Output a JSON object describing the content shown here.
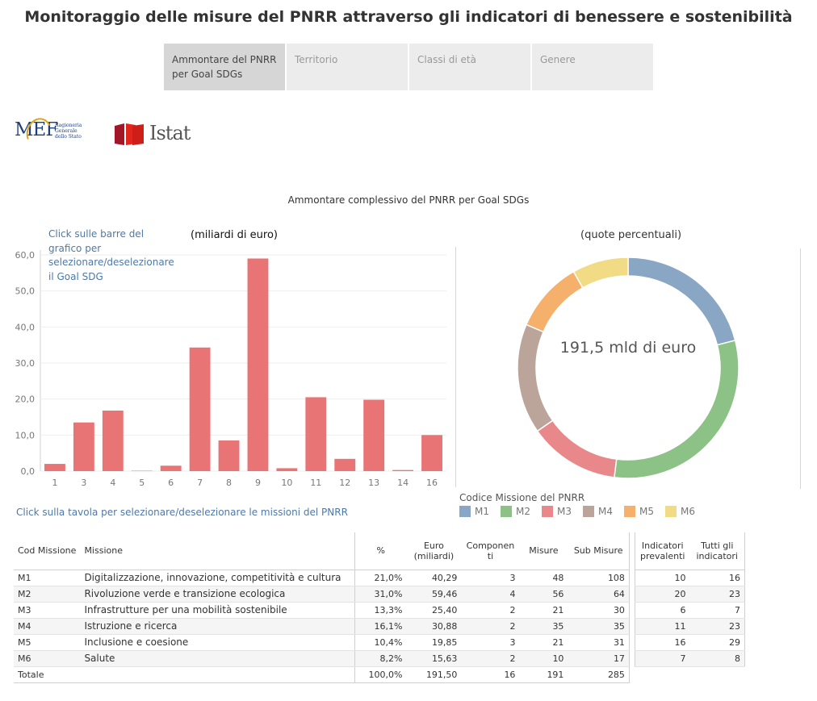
{
  "title": "Monitoraggio delle misure del PNRR attraverso gli indicatori di benessere e sostenibilità",
  "tabs": [
    {
      "label": "Ammontare del PNRR per Goal SDGs",
      "active": true
    },
    {
      "label": "Territorio",
      "active": false
    },
    {
      "label": "Classi di età",
      "active": false
    },
    {
      "label": "Genere",
      "active": false
    }
  ],
  "logos": {
    "mef": {
      "word": "MEF",
      "text": "Ragioneria Generale dello Stato"
    },
    "istat": {
      "word": "Istat"
    }
  },
  "chart_title": "Ammontare complessivo del PNRR per Goal SDGs",
  "bar_hint": "Click sulle barre del grafico per selezionare/deselezionare il Goal SDG",
  "bar_subtitle": "(miliardi di euro)",
  "donut_subtitle": "(quote percentuali)",
  "donut_center": "191,5 mld di euro",
  "legend": {
    "title": "Codice Missione del PNRR",
    "items": [
      {
        "label": "M1",
        "color": "#8aa6c5"
      },
      {
        "label": "M2",
        "color": "#8cc285"
      },
      {
        "label": "M3",
        "color": "#e8888b"
      },
      {
        "label": "M4",
        "color": "#bba59b"
      },
      {
        "label": "M5",
        "color": "#f5b06b"
      },
      {
        "label": "M6",
        "color": "#f1db85"
      }
    ]
  },
  "table_hint": "Click sulla tavola per selezionare/deselezionare le missioni del PNRR",
  "chart_data": [
    {
      "type": "bar",
      "subtitle": "(miliardi di euro)",
      "categories": [
        "1",
        "3",
        "4",
        "5",
        "6",
        "7",
        "8",
        "9",
        "10",
        "11",
        "12",
        "13",
        "14",
        "16"
      ],
      "values": [
        2.0,
        13.5,
        16.8,
        0.1,
        1.5,
        34.3,
        8.5,
        59.0,
        0.8,
        20.5,
        3.4,
        19.8,
        0.3,
        10.0
      ],
      "yticks": [
        "0,0",
        "10,0",
        "20,0",
        "30,0",
        "40,0",
        "50,0",
        "60,0"
      ],
      "ylim": [
        0,
        60
      ],
      "grid": true,
      "color": "#e87475"
    },
    {
      "type": "pie",
      "subtitle": "(quote percentuali)",
      "labels": [
        "M1",
        "M2",
        "M3",
        "M4",
        "M5",
        "M6"
      ],
      "values": [
        21.0,
        31.0,
        13.3,
        16.1,
        10.4,
        8.2
      ]
    }
  ],
  "table": {
    "headers": {
      "cod": "Cod Missione",
      "missione": "Missione",
      "pct": "%",
      "euro": "Euro (miliardi)",
      "componenti": "Componenti",
      "misure": "Misure",
      "sub_misure": "Sub Misure",
      "ind_prevalenti": "Indicatori prevalenti",
      "ind_tutti": "Tutti gli indicatori"
    },
    "rows": [
      {
        "cod": "M1",
        "missione": "Digitalizzazione, innovazione, competitività e cultura",
        "pct": "21,0%",
        "euro": "40,29",
        "componenti": "3",
        "misure": "48",
        "sub_misure": "108",
        "ind_prevalenti": "10",
        "ind_tutti": "16"
      },
      {
        "cod": "M2",
        "missione": "Rivoluzione verde e transizione ecologica",
        "pct": "31,0%",
        "euro": "59,46",
        "componenti": "4",
        "misure": "56",
        "sub_misure": "64",
        "ind_prevalenti": "20",
        "ind_tutti": "23"
      },
      {
        "cod": "M3",
        "missione": "Infrastrutture per una mobilità sostenibile",
        "pct": "13,3%",
        "euro": "25,40",
        "componenti": "2",
        "misure": "21",
        "sub_misure": "30",
        "ind_prevalenti": "6",
        "ind_tutti": "7"
      },
      {
        "cod": "M4",
        "missione": "Istruzione e ricerca",
        "pct": "16,1%",
        "euro": "30,88",
        "componenti": "2",
        "misure": "35",
        "sub_misure": "35",
        "ind_prevalenti": "11",
        "ind_tutti": "23"
      },
      {
        "cod": "M5",
        "missione": "Inclusione e coesione",
        "pct": "10,4%",
        "euro": "19,85",
        "componenti": "3",
        "misure": "21",
        "sub_misure": "31",
        "ind_prevalenti": "16",
        "ind_tutti": "29"
      },
      {
        "cod": "M6",
        "missione": "Salute",
        "pct": "8,2%",
        "euro": "15,63",
        "componenti": "2",
        "misure": "10",
        "sub_misure": "17",
        "ind_prevalenti": "7",
        "ind_tutti": "8"
      }
    ],
    "total": {
      "label": "Totale",
      "pct": "100,0%",
      "euro": "191,50",
      "componenti": "16",
      "misure": "191",
      "sub_misure": "285"
    }
  }
}
